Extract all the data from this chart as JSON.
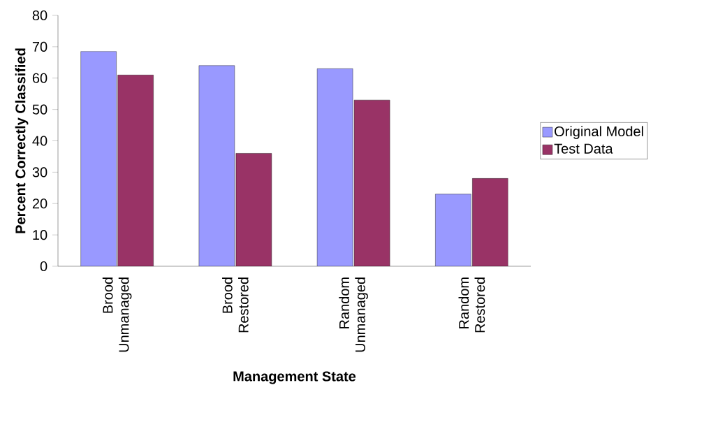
{
  "chart_data": {
    "type": "bar",
    "xlabel": "Management State",
    "ylabel": "Percent Correctly Classified",
    "categories": [
      "Brood Unmanaged",
      "Brood Restored",
      "Random Unmanaged",
      "Random Restored"
    ],
    "series": [
      {
        "name": "Original Model",
        "color": "#9999ff",
        "values": [
          68.5,
          64,
          63,
          23
        ]
      },
      {
        "name": "Test Data",
        "color": "#993366",
        "values": [
          61,
          36,
          53,
          28
        ]
      }
    ],
    "ylim": [
      0,
      80
    ],
    "yticks": [
      0,
      10,
      20,
      30,
      40,
      50,
      60,
      70,
      80
    ],
    "grid": false,
    "legend": "right"
  }
}
